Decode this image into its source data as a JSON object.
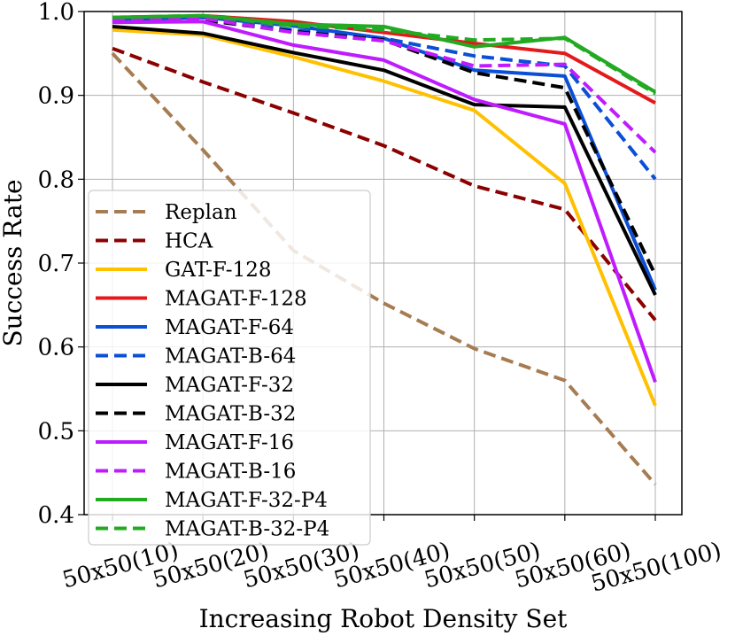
{
  "chart_data": {
    "type": "line",
    "title": "",
    "xlabel": "Increasing Robot Density Set",
    "ylabel": "Success Rate",
    "categories": [
      "50x50(10)",
      "50x50(20)",
      "50x50(30)",
      "50x50(40)",
      "50x50(50)",
      "50x50(60)",
      "50x50(100)"
    ],
    "ylim": [
      0.4,
      1.0
    ],
    "yticks": [
      "0.4",
      "0.5",
      "0.6",
      "0.7",
      "0.8",
      "0.9",
      "1.0"
    ],
    "grid": true,
    "legend_position": "lower-left",
    "series": [
      {
        "name": "Replan",
        "color": "#a67c52",
        "dash": "dashed",
        "values": [
          0.95,
          0.835,
          0.715,
          0.652,
          0.598,
          0.56,
          0.436
        ]
      },
      {
        "name": "HCA",
        "color": "#8b0000",
        "dash": "dashed",
        "values": [
          0.956,
          0.916,
          0.879,
          0.84,
          0.792,
          0.764,
          0.632
        ]
      },
      {
        "name": "GAT-F-128",
        "color": "#ffc000",
        "dash": "solid",
        "values": [
          0.978,
          0.972,
          0.946,
          0.917,
          0.882,
          0.795,
          0.53
        ]
      },
      {
        "name": "MAGAT-F-128",
        "color": "#e31a1c",
        "dash": "solid",
        "values": [
          0.99,
          0.995,
          0.988,
          0.975,
          0.962,
          0.95,
          0.891
        ]
      },
      {
        "name": "MAGAT-F-64",
        "color": "#0b4fd6",
        "dash": "solid",
        "values": [
          0.99,
          0.993,
          0.983,
          0.968,
          0.93,
          0.923,
          0.668
        ]
      },
      {
        "name": "MAGAT-B-64",
        "color": "#0b4fd6",
        "dash": "dashed",
        "values": [
          0.99,
          0.99,
          0.978,
          0.968,
          0.947,
          0.935,
          0.8
        ]
      },
      {
        "name": "MAGAT-F-32",
        "color": "#000000",
        "dash": "solid",
        "values": [
          0.982,
          0.974,
          0.951,
          0.93,
          0.889,
          0.886,
          0.662
        ]
      },
      {
        "name": "MAGAT-B-32",
        "color": "#000000",
        "dash": "dashed",
        "values": [
          0.99,
          0.99,
          0.976,
          0.966,
          0.927,
          0.909,
          0.686
        ]
      },
      {
        "name": "MAGAT-F-16",
        "color": "#bf1bff",
        "dash": "solid",
        "values": [
          0.987,
          0.988,
          0.96,
          0.942,
          0.895,
          0.866,
          0.558
        ]
      },
      {
        "name": "MAGAT-B-16",
        "color": "#bf1bff",
        "dash": "dashed",
        "values": [
          0.99,
          0.992,
          0.975,
          0.965,
          0.935,
          0.937,
          0.832
        ]
      },
      {
        "name": "MAGAT-F-32-P4",
        "color": "#22aa22",
        "dash": "solid",
        "values": [
          0.993,
          0.995,
          0.985,
          0.982,
          0.958,
          0.969,
          0.904
        ]
      },
      {
        "name": "MAGAT-B-32-P4",
        "color": "#22aa22",
        "dash": "dashed",
        "values": [
          0.993,
          0.995,
          0.983,
          0.978,
          0.966,
          0.968,
          0.902
        ]
      }
    ]
  }
}
